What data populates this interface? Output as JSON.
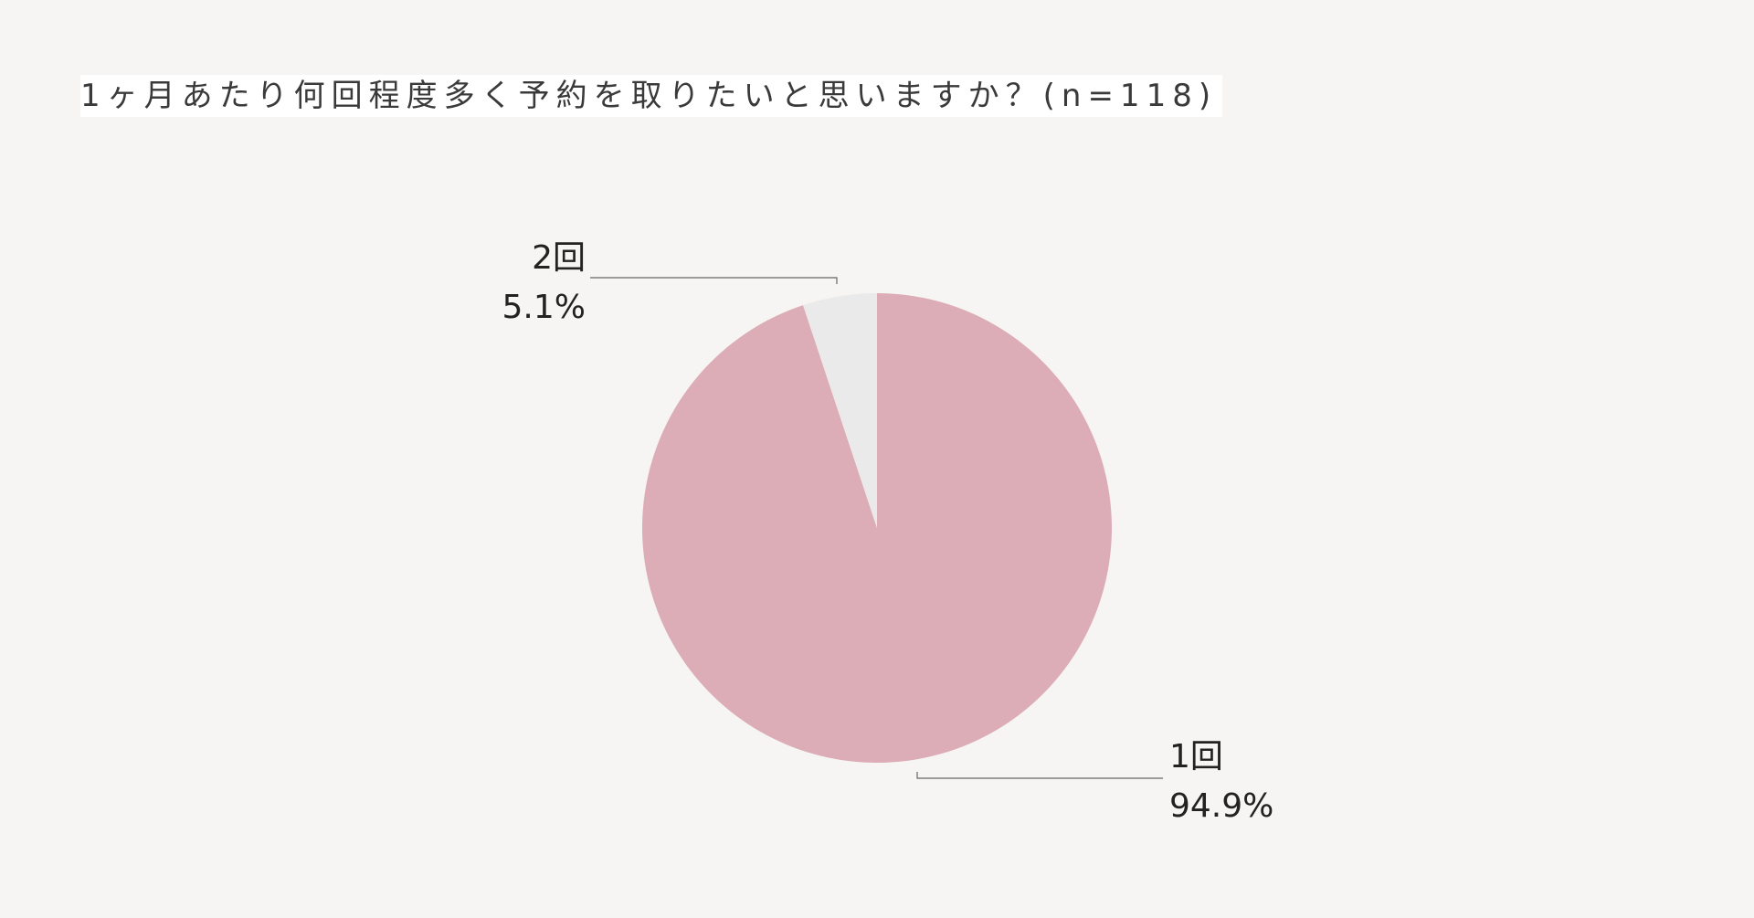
{
  "chart_data": {
    "type": "pie",
    "title": "1ヶ月あたり何回程度多く予約を取りたいと思いますか？(n=118)",
    "categories": [
      "1回",
      "2回"
    ],
    "values": [
      94.9,
      5.1
    ],
    "value_labels": [
      "94.9%",
      "5.1%"
    ],
    "colors": [
      "#dcadb6",
      "#ebeaea"
    ],
    "start_angle": "12 o'clock",
    "direction": "clockwise",
    "legend": "none"
  }
}
